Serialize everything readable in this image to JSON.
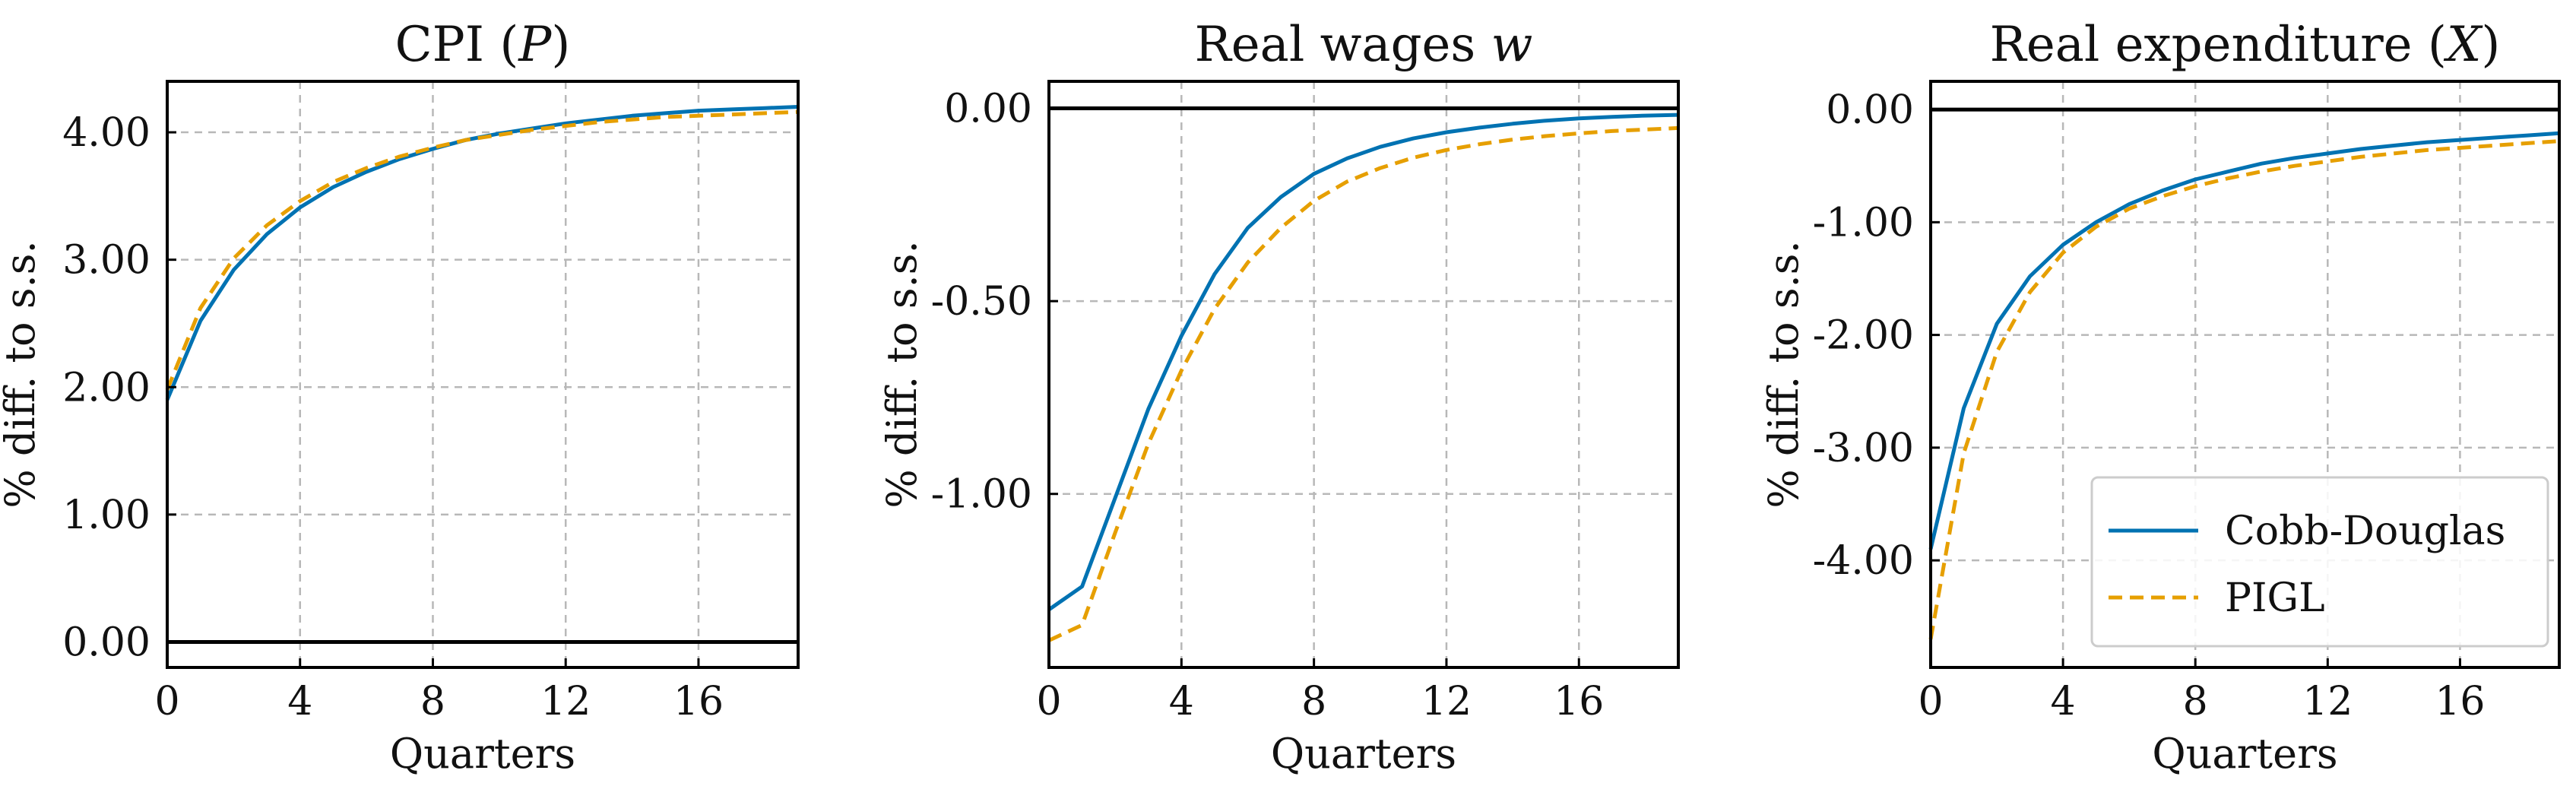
{
  "chart_data": [
    {
      "type": "line",
      "title": "CPI (P)",
      "title_parts": {
        "text": "CPI (",
        "var": "P",
        "close": ")"
      },
      "xlabel": "Quarters",
      "ylabel": "% diff. to s.s.",
      "xlim": [
        0,
        19
      ],
      "ylim": [
        -0.2,
        4.4
      ],
      "xticks": [
        0,
        4,
        8,
        12,
        16
      ],
      "yticks": [
        0.0,
        1.0,
        2.0,
        3.0,
        4.0
      ],
      "ytick_labels": [
        "0.00",
        "1.00",
        "2.00",
        "3.00",
        "4.00"
      ],
      "x": [
        0,
        1,
        2,
        3,
        4,
        5,
        6,
        7,
        8,
        9,
        10,
        11,
        12,
        13,
        14,
        15,
        16,
        17,
        18,
        19
      ],
      "series": [
        {
          "name": "Cobb-Douglas",
          "color": "#0072b2",
          "dash": "solid",
          "values": [
            1.9,
            2.52,
            2.92,
            3.2,
            3.41,
            3.57,
            3.69,
            3.79,
            3.87,
            3.94,
            3.99,
            4.03,
            4.07,
            4.1,
            4.13,
            4.15,
            4.17,
            4.18,
            4.19,
            4.2
          ]
        },
        {
          "name": "PIGL",
          "color": "#e69f00",
          "dash": "dashed",
          "values": [
            1.98,
            2.62,
            3.01,
            3.27,
            3.46,
            3.61,
            3.72,
            3.81,
            3.88,
            3.94,
            3.98,
            4.02,
            4.05,
            4.08,
            4.1,
            4.12,
            4.13,
            4.14,
            4.15,
            4.16
          ]
        }
      ],
      "reference_line": 0,
      "grid": true
    },
    {
      "type": "line",
      "title": "Real wages w",
      "title_parts": {
        "text": "Real wages ",
        "var": "w",
        "close": ""
      },
      "xlabel": "Quarters",
      "ylabel": "% diff. to s.s.",
      "xlim": [
        0,
        19
      ],
      "ylim": [
        -1.45,
        0.07
      ],
      "xticks": [
        0,
        4,
        8,
        12,
        16
      ],
      "yticks": [
        0.0,
        -0.5,
        -1.0
      ],
      "ytick_labels": [
        "0.00",
        "-0.50",
        "-1.00"
      ],
      "x": [
        0,
        1,
        2,
        3,
        4,
        5,
        6,
        7,
        8,
        9,
        10,
        11,
        12,
        13,
        14,
        15,
        16,
        17,
        18,
        19
      ],
      "series": [
        {
          "name": "Cobb-Douglas",
          "color": "#0072b2",
          "dash": "solid",
          "values": [
            -1.3,
            -1.24,
            -1.01,
            -0.78,
            -0.59,
            -0.43,
            -0.31,
            -0.23,
            -0.17,
            -0.13,
            -0.1,
            -0.078,
            -0.062,
            -0.05,
            -0.04,
            -0.032,
            -0.026,
            -0.022,
            -0.019,
            -0.017
          ]
        },
        {
          "name": "PIGL",
          "color": "#e69f00",
          "dash": "dashed",
          "values": [
            -1.38,
            -1.34,
            -1.1,
            -0.87,
            -0.68,
            -0.52,
            -0.4,
            -0.31,
            -0.24,
            -0.19,
            -0.155,
            -0.128,
            -0.108,
            -0.093,
            -0.081,
            -0.072,
            -0.065,
            -0.059,
            -0.055,
            -0.051
          ]
        }
      ],
      "reference_line": 0,
      "grid": true
    },
    {
      "type": "line",
      "title": "Real expenditure (X)",
      "title_parts": {
        "text": "Real expenditure (",
        "var": "X",
        "close": ")"
      },
      "xlabel": "Quarters",
      "ylabel": "% diff. to s.s.",
      "xlim": [
        0,
        19
      ],
      "ylim": [
        -4.95,
        0.25
      ],
      "xticks": [
        0,
        4,
        8,
        12,
        16
      ],
      "yticks": [
        0.0,
        -1.0,
        -2.0,
        -3.0,
        -4.0
      ],
      "ytick_labels": [
        "0.00",
        "-1.00",
        "-2.00",
        "-3.00",
        "-4.00"
      ],
      "x": [
        0,
        1,
        2,
        3,
        4,
        5,
        6,
        7,
        8,
        9,
        10,
        11,
        12,
        13,
        14,
        15,
        16,
        17,
        18,
        19
      ],
      "series": [
        {
          "name": "Cobb-Douglas",
          "color": "#0072b2",
          "dash": "solid",
          "values": [
            -3.9,
            -2.65,
            -1.9,
            -1.48,
            -1.2,
            -1.0,
            -0.84,
            -0.72,
            -0.62,
            -0.55,
            -0.48,
            -0.43,
            -0.39,
            -0.35,
            -0.32,
            -0.29,
            -0.27,
            -0.25,
            -0.23,
            -0.21
          ]
        },
        {
          "name": "PIGL",
          "color": "#e69f00",
          "dash": "dashed",
          "values": [
            -4.7,
            -3.05,
            -2.15,
            -1.62,
            -1.27,
            -1.04,
            -0.88,
            -0.77,
            -0.68,
            -0.61,
            -0.55,
            -0.5,
            -0.46,
            -0.42,
            -0.39,
            -0.36,
            -0.34,
            -0.32,
            -0.3,
            -0.28
          ]
        }
      ],
      "reference_line": 0,
      "grid": true,
      "legend": "bottom-right"
    }
  ]
}
